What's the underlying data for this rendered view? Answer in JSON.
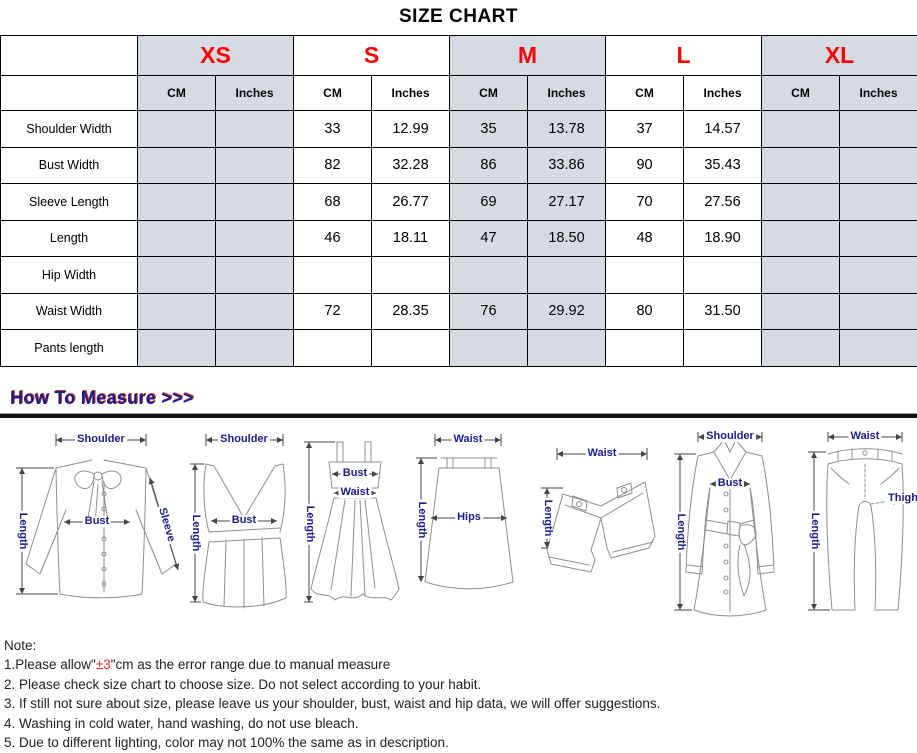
{
  "title": "SIZE CHART",
  "size_chart": {
    "shade_color": "#d6dbe3",
    "size_color": "#ff0000",
    "unit_headers": [
      "CM",
      "Inches"
    ],
    "sizes": [
      {
        "label": "XS",
        "shaded": true
      },
      {
        "label": "S",
        "shaded": false
      },
      {
        "label": "M",
        "shaded": true
      },
      {
        "label": "L",
        "shaded": false
      },
      {
        "label": "XL",
        "shaded": true
      }
    ],
    "rows": [
      {
        "label": "Shoulder Width",
        "cells": [
          "",
          "",
          "33",
          "12.99",
          "35",
          "13.78",
          "37",
          "14.57",
          "",
          ""
        ]
      },
      {
        "label": "Bust Width",
        "cells": [
          "",
          "",
          "82",
          "32.28",
          "86",
          "33.86",
          "90",
          "35.43",
          "",
          ""
        ]
      },
      {
        "label": "Sleeve Length",
        "cells": [
          "",
          "",
          "68",
          "26.77",
          "69",
          "27.17",
          "70",
          "27.56",
          "",
          ""
        ]
      },
      {
        "label": "Length",
        "cells": [
          "",
          "",
          "46",
          "18.11",
          "47",
          "18.50",
          "48",
          "18.90",
          "",
          ""
        ]
      },
      {
        "label": "Hip Width",
        "cells": [
          "",
          "",
          "",
          "",
          "",
          "",
          "",
          "",
          "",
          ""
        ]
      },
      {
        "label": "Waist Width",
        "cells": [
          "",
          "",
          "72",
          "28.35",
          "76",
          "29.92",
          "80",
          "31.50",
          "",
          ""
        ]
      },
      {
        "label": "Pants length",
        "cells": [
          "",
          "",
          "",
          "",
          "",
          "",
          "",
          "",
          "",
          ""
        ]
      }
    ]
  },
  "measure": {
    "heading": "How To Measure >>>",
    "label_color": "#1c1c8f",
    "figures": [
      {
        "name": "blouse",
        "labels": [
          "Shoulder",
          "Length",
          "Bust",
          "Sleeve"
        ]
      },
      {
        "name": "sleeveless-top",
        "labels": [
          "Shoulder",
          "Length",
          "Bust"
        ]
      },
      {
        "name": "cami-dress",
        "labels": [
          "Length",
          "Bust",
          "Waist"
        ]
      },
      {
        "name": "skirt",
        "labels": [
          "Waist",
          "Length",
          "Hips"
        ]
      },
      {
        "name": "shorts",
        "labels": [
          "Waist",
          "Length"
        ]
      },
      {
        "name": "coat",
        "labels": [
          "Shoulder",
          "Length",
          "Bust"
        ]
      },
      {
        "name": "pants",
        "labels": [
          "Waist",
          "Length",
          "Thigh"
        ]
      }
    ]
  },
  "notes": {
    "heading": "Note:",
    "lines": [
      {
        "parts": [
          {
            "text": "1.Please allow\""
          },
          {
            "text": "±3",
            "red": true
          },
          {
            "text": "\"cm as the error range due to manual measure"
          }
        ]
      },
      {
        "parts": [
          {
            "text": "2. Please check size chart to choose size. Do not select according to your habit."
          }
        ]
      },
      {
        "parts": [
          {
            "text": "3. If still not sure about size, please leave us your shoulder, bust, waist and hip data, we will offer suggestions."
          }
        ]
      },
      {
        "parts": [
          {
            "text": "4. Washing in cold water, hand washing, do not use bleach."
          }
        ]
      },
      {
        "parts": [
          {
            "text": "5. Due to different lighting, color may not 100% the same as in description."
          }
        ]
      }
    ]
  }
}
